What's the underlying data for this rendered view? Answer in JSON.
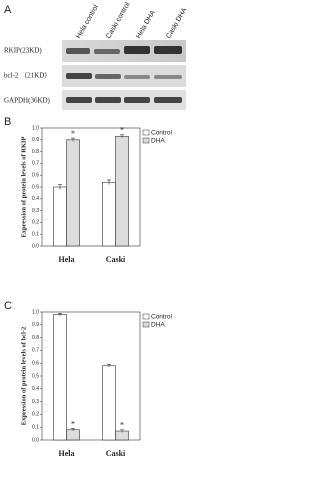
{
  "blot": {
    "panel": "A",
    "lanes": [
      "Hela control",
      "Caski control",
      "Hela DHA",
      "Caski DHA"
    ],
    "rows": [
      "RKIP(23KD)",
      "bcl-2 （21KD）",
      "GAPDH(36KD)"
    ]
  },
  "chart_data": [
    {
      "type": "bar",
      "panel": "B",
      "ylabel": "Expression of protein levels of RKIP",
      "categories": [
        "Hela",
        "Caski"
      ],
      "series": [
        {
          "name": "Control",
          "color": "#ffffff",
          "values": [
            0.5,
            0.54
          ],
          "errors": [
            0.02,
            0.02
          ]
        },
        {
          "name": "DHA",
          "color": "#d9d9d9",
          "values": [
            0.9,
            0.93
          ],
          "errors": [
            0.015,
            0.012
          ]
        }
      ],
      "annotations": [
        "*",
        "*"
      ],
      "ylim": [
        0,
        1.0
      ],
      "yticks": [
        {
          "value": 0,
          "label": "0.0"
        },
        {
          "value": 0.1,
          "label": "0.1"
        },
        {
          "value": 0.2,
          "label": "0.2"
        },
        {
          "value": 0.3,
          "label": "0.3"
        },
        {
          "value": 0.4,
          "label": "0.4"
        },
        {
          "value": 0.5,
          "label": "0.5"
        },
        {
          "value": 0.6,
          "label": "0.6"
        },
        {
          "value": 0.7,
          "label": "0.7"
        },
        {
          "value": 0.8,
          "label": "0.8"
        },
        {
          "value": 0.9,
          "label": "0.9"
        },
        {
          "value": 1.0,
          "label": "1.0"
        }
      ]
    },
    {
      "type": "bar",
      "panel": "C",
      "ylabel": "Expression of protein levels of bcl-2",
      "categories": [
        "Hela",
        "Caski"
      ],
      "series": [
        {
          "name": "Control",
          "color": "#ffffff",
          "values": [
            0.98,
            0.58
          ],
          "errors": [
            0.01,
            0.01
          ]
        },
        {
          "name": "DHA",
          "color": "#d9d9d9",
          "values": [
            0.08,
            0.07
          ],
          "errors": [
            0.01,
            0.01
          ]
        }
      ],
      "annotations": [
        "*",
        "*"
      ],
      "ylim": [
        0,
        1.0
      ],
      "yticks": [
        {
          "value": 0,
          "label": "0.0"
        },
        {
          "value": 0.1,
          "label": "0.1"
        },
        {
          "value": 0.2,
          "label": "0.2"
        },
        {
          "value": 0.3,
          "label": "0.3"
        },
        {
          "value": 0.4,
          "label": "0.4"
        },
        {
          "value": 0.5,
          "label": "0.5"
        },
        {
          "value": 0.6,
          "label": "0.6"
        },
        {
          "value": 0.7,
          "label": "0.7"
        },
        {
          "value": 0.8,
          "label": "0.8"
        },
        {
          "value": 0.9,
          "label": "0.9"
        },
        {
          "value": 1.0,
          "label": "1.0"
        }
      ]
    }
  ]
}
